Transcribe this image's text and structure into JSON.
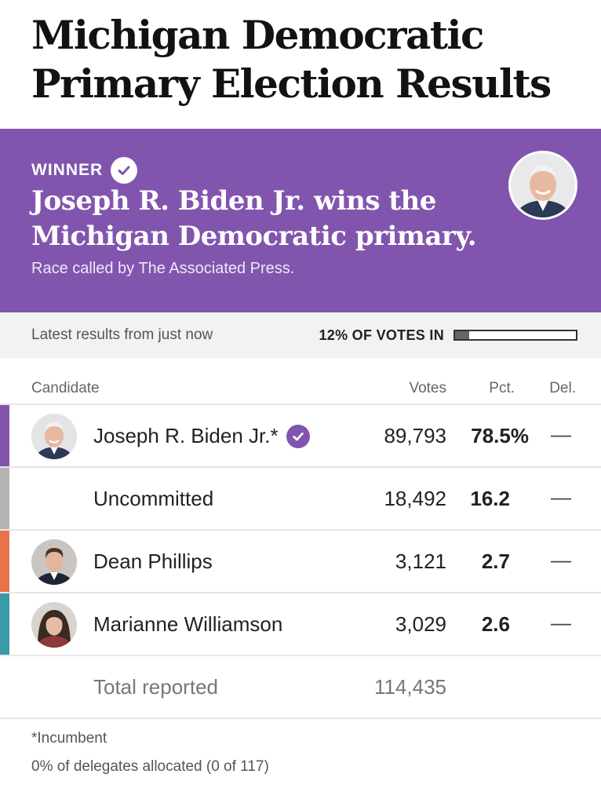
{
  "headline": "Michigan Democratic Primary Election Results",
  "banner": {
    "winner_label": "WINNER",
    "title": "Joseph R. Biden Jr. wins the Michigan Democratic primary.",
    "subtitle": "Race called by The Associated Press.",
    "background": "#8155ad",
    "avatar_icon": "candidate-photo"
  },
  "status": {
    "latest": "Latest results from just now",
    "votes_in": "12% OF VOTES IN",
    "reported_fraction": 0.12
  },
  "table": {
    "headers": {
      "candidate": "Candidate",
      "votes": "Votes",
      "pct": "Pct.",
      "del": "Del."
    },
    "rows": [
      {
        "name": "Joseph R. Biden Jr.*",
        "votes": "89,793",
        "pct": "78.5%",
        "del": "—",
        "color": "#8155ad",
        "winner": true,
        "photo": "biden"
      },
      {
        "name": "Uncommitted",
        "votes": "18,492",
        "pct": "16.2",
        "del": "—",
        "color": "#b3b3b3",
        "winner": false,
        "photo": ""
      },
      {
        "name": "Dean Phillips",
        "votes": "3,121",
        "pct": "2.7",
        "del": "—",
        "color": "#e8734a",
        "winner": false,
        "photo": "phillips"
      },
      {
        "name": "Marianne Williamson",
        "votes": "3,029",
        "pct": "2.6",
        "del": "—",
        "color": "#3a9ba8",
        "winner": false,
        "photo": "williamson"
      }
    ],
    "total_label": "Total reported",
    "total_votes": "114,435"
  },
  "footnotes": {
    "incumbent": "*Incumbent",
    "delegates": "0% of delegates allocated (0 of 117)"
  }
}
